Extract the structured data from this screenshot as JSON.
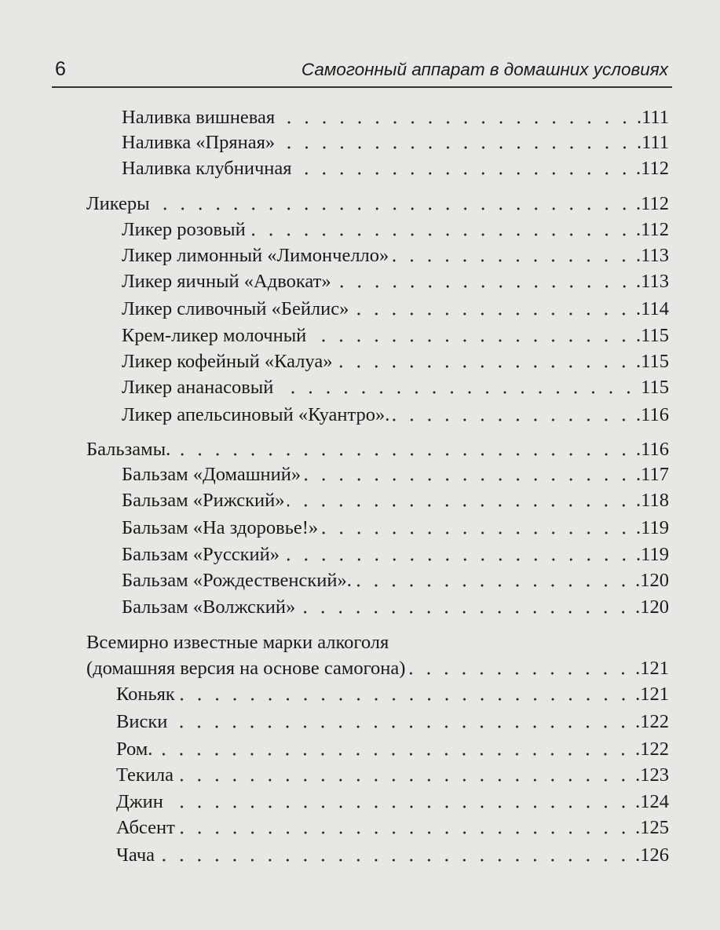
{
  "header": {
    "page_number": "6",
    "title": "Самогонный аппарат в домашних условиях"
  },
  "toc": [
    {
      "title": "Наливка вишневая",
      "page": ".111",
      "level": 2
    },
    {
      "title": "Наливка «Пряная»",
      "page": ".111",
      "level": 2
    },
    {
      "title": "Наливка клубничная",
      "page": ".112",
      "level": 2
    },
    {
      "title": "Ликеры",
      "page": ".112",
      "level": 1
    },
    {
      "title": "Ликер розовый",
      "page": ".112",
      "level": 2
    },
    {
      "title": "Ликер лимонный «Лимончелло»",
      "page": ".113",
      "level": 2
    },
    {
      "title": "Ликер яичный «Адвокат»",
      "page": ".113",
      "level": 2
    },
    {
      "title": "Ликер сливочный «Бейлис»",
      "page": ".114",
      "level": 2
    },
    {
      "title": "Крем-ликер молочный",
      "page": ".115",
      "level": 2
    },
    {
      "title": "Ликер кофейный «Калуа»",
      "page": ".115",
      "level": 2
    },
    {
      "title": "Ликер ананасовый",
      "page": "115",
      "level": 2
    },
    {
      "title": "Ликер апельсиновый «Куантро».",
      "page": ".116",
      "level": 2
    },
    {
      "title": "Бальзамы.",
      "page": ".116",
      "level": 1
    },
    {
      "title": "Бальзам «Домашний»",
      "page": ".117",
      "level": 2
    },
    {
      "title": "Бальзам «Рижский»",
      "page": ".118",
      "level": 2
    },
    {
      "title": "Бальзам «На здоровье!»",
      "page": ".119",
      "level": 2
    },
    {
      "title": "Бальзам «Русский»",
      "page": ".119",
      "level": 2
    },
    {
      "title": "Бальзам «Рождественский».",
      "page": ".120",
      "level": 2
    },
    {
      "title": "Бальзам «Волжский»",
      "page": ".120",
      "level": 2
    },
    {
      "title": "Всемирно известные марки алкоголя",
      "page": "",
      "level": 1
    },
    {
      "title": "(домашняя версия на основе самогона)",
      "page": ".121",
      "level": 1
    },
    {
      "title": "Коньяк",
      "page": ".121",
      "level": 3
    },
    {
      "title": "Виски",
      "page": ".122",
      "level": 3
    },
    {
      "title": "Ром.",
      "page": ".122",
      "level": 3
    },
    {
      "title": "Текила",
      "page": ".123",
      "level": 3
    },
    {
      "title": "Джин",
      "page": ".124",
      "level": 3
    },
    {
      "title": "Абсент",
      "page": ".125",
      "level": 3
    },
    {
      "title": "Чача",
      "page": ".126",
      "level": 3
    }
  ]
}
